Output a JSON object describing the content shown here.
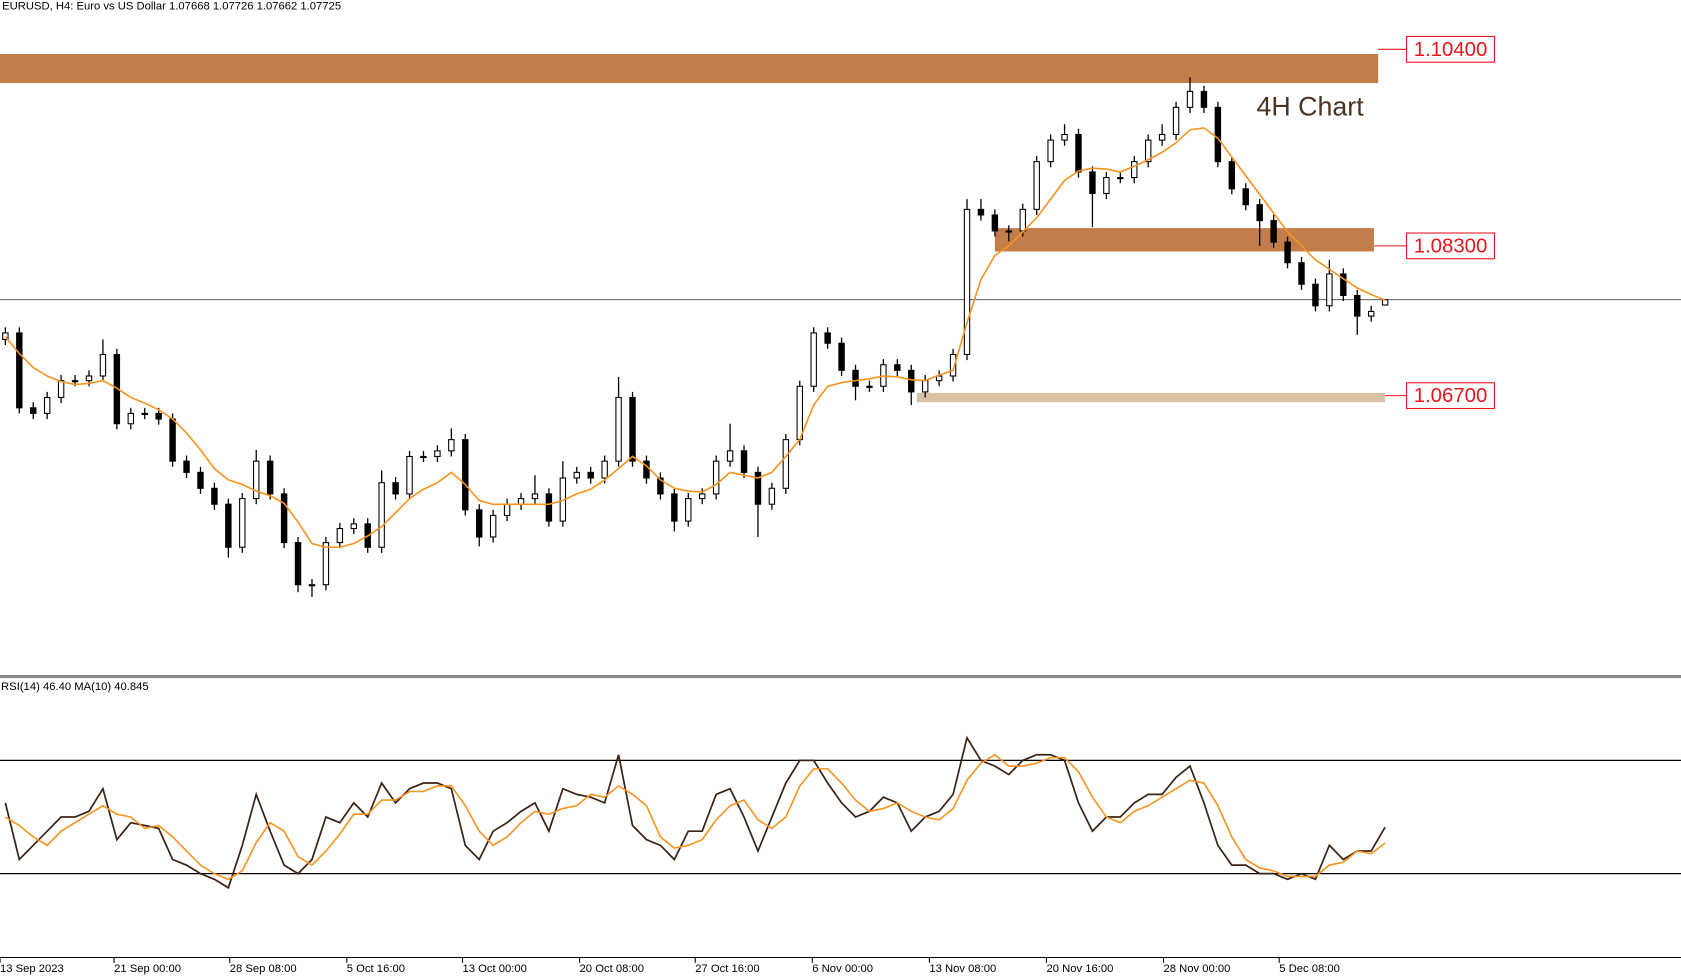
{
  "chart_data": {
    "type": "candlestick",
    "title": "EURUSD, H4:  Euro vs US Dollar  1.07668 1.07726 1.07662 1.07725",
    "color": "#000000",
    "open": [
      1.073,
      1.0737,
      1.0657,
      1.0651,
      1.0668,
      1.0686,
      1.0686,
      1.0691,
      1.0714,
      1.064,
      1.0651,
      1.0651,
      1.0645,
      1.06,
      1.0588,
      1.0571,
      1.0554,
      1.0508,
      1.056,
      1.06,
      1.0565,
      1.0513,
      1.0468,
      1.0468,
      1.0513,
      1.0528,
      1.0533,
      1.0508,
      1.0577,
      1.0565,
      1.0605,
      1.0605,
      1.0611,
      1.0623,
      1.0548,
      1.0519,
      1.0542,
      1.0554,
      1.056,
      1.0565,
      1.0536,
      1.0582,
      1.0588,
      1.0582,
      1.06,
      1.0668,
      1.06,
      1.0582,
      1.0565,
      1.0536,
      1.056,
      1.0565,
      1.06,
      1.0611,
      1.0588,
      1.0554,
      1.0571,
      1.0623,
      1.068,
      1.0737,
      1.0726,
      1.0697,
      1.068,
      1.068,
      1.0703,
      1.0697,
      1.0674,
      1.0686,
      1.0691,
      1.0714,
      1.0869,
      1.0863,
      1.0846,
      1.0846,
      1.0869,
      1.092,
      1.0943,
      1.0949,
      1.0909,
      1.0886,
      1.0903,
      1.0903,
      1.092,
      1.0943,
      1.0949,
      1.0978,
      1.0995,
      1.0978,
      1.092,
      1.0891,
      1.0874,
      1.0857,
      1.0834,
      1.0812,
      1.0789,
      1.0766,
      1.08,
      1.0777,
      1.0755,
      1.07668
    ],
    "high": [
      1.0743,
      1.0743,
      1.0663,
      1.0674,
      1.0692,
      1.0692,
      1.0697,
      1.073,
      1.072,
      1.0657,
      1.0657,
      1.0657,
      1.0651,
      1.0606,
      1.0594,
      1.0577,
      1.056,
      1.0566,
      1.0612,
      1.0606,
      1.0571,
      1.0519,
      1.0474,
      1.0519,
      1.0534,
      1.0539,
      1.0539,
      1.059,
      1.0583,
      1.0611,
      1.0611,
      1.0617,
      1.0635,
      1.0629,
      1.0554,
      1.0548,
      1.056,
      1.0566,
      1.0585,
      1.0571,
      1.06,
      1.0594,
      1.0594,
      1.0606,
      1.069,
      1.0674,
      1.0606,
      1.0588,
      1.0571,
      1.0566,
      1.0571,
      1.0606,
      1.064,
      1.0617,
      1.0594,
      1.0577,
      1.0629,
      1.0686,
      1.0743,
      1.0743,
      1.0732,
      1.0703,
      1.0686,
      1.0709,
      1.0709,
      1.0703,
      1.0692,
      1.0697,
      1.072,
      1.088,
      1.088,
      1.0869,
      1.0852,
      1.0875,
      1.0926,
      1.0949,
      1.096,
      1.0955,
      1.0915,
      1.0909,
      1.0909,
      1.0926,
      1.0949,
      1.096,
      1.0984,
      1.101,
      1.1001,
      1.0984,
      1.0926,
      1.0897,
      1.088,
      1.0863,
      1.084,
      1.0818,
      1.0795,
      1.0815,
      1.0806,
      1.0783,
      1.0766,
      1.07726
    ],
    "low": [
      1.0724,
      1.0651,
      1.0645,
      1.0645,
      1.0662,
      1.068,
      1.068,
      1.0685,
      1.0634,
      1.0634,
      1.0645,
      1.0639,
      1.0594,
      1.0582,
      1.0565,
      1.0548,
      1.0497,
      1.0502,
      1.0554,
      1.0559,
      1.0507,
      1.046,
      1.0455,
      1.0462,
      1.0507,
      1.0522,
      1.0502,
      1.0502,
      1.0559,
      1.0559,
      1.0599,
      1.0599,
      1.0605,
      1.0542,
      1.0509,
      1.0513,
      1.0536,
      1.0548,
      1.0554,
      1.053,
      1.053,
      1.0576,
      1.0576,
      1.0576,
      1.0594,
      1.0594,
      1.0576,
      1.0559,
      1.0525,
      1.053,
      1.0554,
      1.0559,
      1.0594,
      1.0582,
      1.0519,
      1.0548,
      1.0565,
      1.0617,
      1.0674,
      1.072,
      1.0691,
      1.0665,
      1.0674,
      1.0674,
      1.0691,
      1.066,
      1.0668,
      1.068,
      1.0685,
      1.0708,
      1.0857,
      1.084,
      1.0835,
      1.084,
      1.0863,
      1.0914,
      1.0937,
      1.0903,
      1.085,
      1.088,
      1.0897,
      1.0897,
      1.0914,
      1.0937,
      1.0943,
      1.0972,
      1.0972,
      1.0914,
      1.0885,
      1.0868,
      1.083,
      1.0828,
      1.0806,
      1.0783,
      1.076,
      1.076,
      1.0771,
      1.0735,
      1.0749,
      1.07662
    ],
    "close": [
      1.0737,
      1.0657,
      1.0651,
      1.0668,
      1.0686,
      1.0686,
      1.0691,
      1.0714,
      1.064,
      1.0651,
      1.0651,
      1.0645,
      1.06,
      1.0588,
      1.0571,
      1.0554,
      1.0508,
      1.056,
      1.06,
      1.0565,
      1.0513,
      1.0468,
      1.0468,
      1.0513,
      1.0528,
      1.0533,
      1.0508,
      1.0577,
      1.0565,
      1.0605,
      1.0605,
      1.0611,
      1.0623,
      1.0548,
      1.0519,
      1.0542,
      1.0554,
      1.056,
      1.0565,
      1.0536,
      1.0582,
      1.0588,
      1.0582,
      1.06,
      1.0668,
      1.06,
      1.0582,
      1.0565,
      1.0536,
      1.056,
      1.0565,
      1.06,
      1.0611,
      1.0588,
      1.0554,
      1.0571,
      1.0623,
      1.068,
      1.0737,
      1.0726,
      1.0697,
      1.068,
      1.068,
      1.0703,
      1.0697,
      1.0674,
      1.0686,
      1.0691,
      1.0714,
      1.0869,
      1.0863,
      1.0846,
      1.0846,
      1.0869,
      1.092,
      1.0943,
      1.0949,
      1.0909,
      1.0886,
      1.0903,
      1.0903,
      1.092,
      1.0943,
      1.0949,
      1.0978,
      1.0995,
      1.0978,
      1.092,
      1.0891,
      1.0874,
      1.0857,
      1.0834,
      1.0812,
      1.0789,
      1.0766,
      1.08,
      1.0777,
      1.0755,
      1.076,
      1.07725
    ],
    "ma": {
      "color": "#f7931e",
      "values": [
        1.0733,
        1.0715,
        1.07,
        1.0691,
        1.0685,
        1.0682,
        1.0683,
        1.0686,
        1.0678,
        1.0668,
        1.0662,
        1.0655,
        1.0645,
        1.063,
        1.0612,
        1.0592,
        1.058,
        1.0575,
        1.0568,
        1.0563,
        1.0555,
        1.0535,
        1.0512,
        1.0508,
        1.0508,
        1.0512,
        1.052,
        1.053,
        1.0545,
        1.056,
        1.057,
        1.0577,
        1.0588,
        1.0575,
        1.0558,
        1.0554,
        1.0554,
        1.0554,
        1.0554,
        1.0554,
        1.0558,
        1.0565,
        1.057,
        1.058,
        1.0592,
        1.0605,
        1.0595,
        1.058,
        1.0571,
        1.0568,
        1.0567,
        1.0575,
        1.0588,
        1.0585,
        1.0582,
        1.0588,
        1.0605,
        1.0623,
        1.066,
        1.068,
        1.0684,
        1.0686,
        1.0688,
        1.0691,
        1.069,
        1.0687,
        1.0686,
        1.0692,
        1.0697,
        1.0748,
        1.0794,
        1.082,
        1.083,
        1.0845,
        1.086,
        1.088,
        1.09,
        1.091,
        1.0913,
        1.0912,
        1.0909,
        1.0915,
        1.0922,
        1.093,
        1.094,
        1.0954,
        1.0956,
        1.0945,
        1.0925,
        1.0905,
        1.0885,
        1.0865,
        1.0845,
        1.083,
        1.0815,
        1.0805,
        1.0795,
        1.0785,
        1.0778,
        1.0772
      ]
    },
    "current_price": 1.07725,
    "zones": [
      {
        "value": 1.104,
        "label": "1.10400",
        "top": 1.1035,
        "bottom": 1.1004,
        "from": -0.4,
        "to": 98.5,
        "color": "#c27d4a"
      },
      {
        "value": 1.083,
        "label": "1.08300",
        "top": 1.0849,
        "bottom": 1.0824,
        "from": 71,
        "to": 98.2,
        "color": "#c27d4a"
      },
      {
        "value": 1.067,
        "label": "1.06700",
        "top": 1.0673,
        "bottom": 1.0663,
        "from": 65.4,
        "to": 99,
        "color": "#d9c1a5"
      }
    ],
    "annotation": "4H Chart",
    "xlim": [
      -0.385,
      120.23
    ],
    "ylim": [
      1.0371,
      1.10927
    ],
    "xticks": [
      {
        "value": -0.4,
        "label": "13 Sep 2023"
      },
      {
        "value": 7.8,
        "label": "21 Sep 00:00"
      },
      {
        "value": 16.1,
        "label": "28 Sep 08:00"
      },
      {
        "value": 24.5,
        "label": "5 Oct 16:00"
      },
      {
        "value": 32.8,
        "label": "13 Oct 00:00"
      },
      {
        "value": 41.2,
        "label": "20 Oct 08:00"
      },
      {
        "value": 49.5,
        "label": "27 Oct 16:00"
      },
      {
        "value": 57.9,
        "label": "6 Nov 00:00"
      },
      {
        "value": 66.3,
        "label": "13 Nov 08:00"
      },
      {
        "value": 74.7,
        "label": "20 Nov 16:00"
      },
      {
        "value": 83.1,
        "label": "28 Nov 00:00"
      },
      {
        "value": 91.4,
        "label": "5 Dec 08:00"
      }
    ],
    "rsi": {
      "label": "RSI(14) 46.40 MA(10) 40.845",
      "color": "#3b2314",
      "values": [
        55,
        35,
        40,
        45,
        50,
        50,
        52,
        60,
        42,
        48,
        47,
        46,
        35,
        33,
        30,
        28,
        25,
        40,
        58,
        45,
        33,
        30,
        35,
        50,
        48,
        55,
        50,
        62,
        55,
        60,
        62,
        62,
        60,
        40,
        35,
        45,
        48,
        52,
        55,
        45,
        60,
        58,
        57,
        55,
        72,
        47,
        42,
        40,
        35,
        45,
        45,
        58,
        60,
        50,
        38,
        50,
        62,
        70,
        70,
        62,
        55,
        50,
        52,
        57,
        55,
        45,
        50,
        52,
        58,
        78,
        70,
        68,
        65,
        70,
        72,
        72,
        70,
        55,
        45,
        50,
        50,
        55,
        58,
        58,
        64,
        68,
        55,
        40,
        33,
        33,
        30,
        30,
        28,
        30,
        28,
        40,
        35,
        38,
        38,
        46.4
      ],
      "ma": {
        "color": "#f7931e",
        "values": [
          50,
          47,
          43,
          40,
          45,
          48,
          51,
          54,
          51,
          50,
          46,
          47,
          43,
          38,
          33,
          30,
          28,
          31,
          41,
          48,
          45,
          36,
          33,
          38,
          44,
          51,
          51,
          56,
          56,
          59,
          59,
          61,
          61,
          54,
          45,
          40,
          43,
          48,
          52,
          51,
          53,
          54,
          58,
          57,
          61,
          58,
          54,
          43,
          39,
          40,
          42,
          49,
          54,
          56,
          49,
          46,
          50,
          61,
          67,
          67,
          62,
          56,
          52,
          53,
          55,
          52,
          50,
          49,
          53,
          63,
          69,
          72,
          68,
          68,
          69,
          71,
          71,
          66,
          57,
          50,
          48,
          52,
          54,
          57,
          60,
          63,
          62,
          54,
          43,
          35,
          32,
          31,
          29,
          29,
          29,
          33,
          34,
          38,
          37,
          40.845
        ]
      },
      "ylim": [
        0,
        100
      ],
      "levels": [
        70,
        30
      ]
    }
  }
}
